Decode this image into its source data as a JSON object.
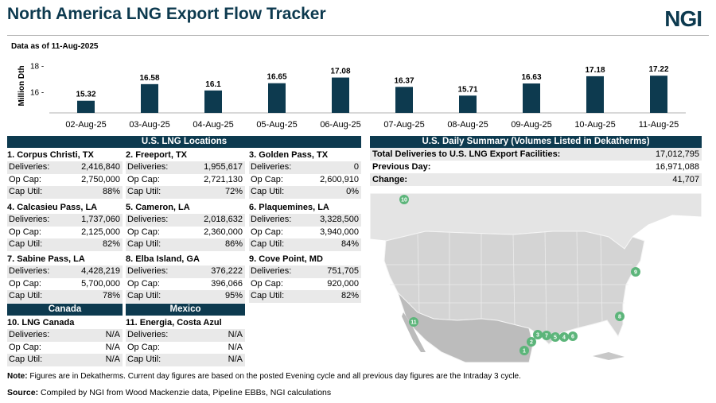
{
  "header": {
    "title": "North America LNG Export Flow Tracker",
    "logo": "NGI"
  },
  "as_of": "Data as of 11-Aug-2025",
  "chart_data": {
    "type": "bar",
    "ylabel": "Million Dth",
    "yticks": [
      "18 -",
      "16 -"
    ],
    "ylim": [
      14.4,
      18.5
    ],
    "bar_color": "#0d3a4f",
    "categories": [
      "02-Aug-25",
      "03-Aug-25",
      "04-Aug-25",
      "05-Aug-25",
      "06-Aug-25",
      "07-Aug-25",
      "08-Aug-25",
      "09-Aug-25",
      "10-Aug-25",
      "11-Aug-25"
    ],
    "values": [
      15.32,
      16.58,
      16.1,
      16.65,
      17.08,
      16.37,
      15.71,
      16.63,
      17.18,
      17.22
    ],
    "labels": [
      "15.32",
      "16.58",
      "16.1",
      "16.65",
      "17.08",
      "16.37",
      "15.71",
      "16.63",
      "17.18",
      "17.22"
    ]
  },
  "us_locations": {
    "banner": "U.S. LNG Locations",
    "items": [
      {
        "name": "1. Corpus Christi, TX",
        "deliveries": "2,416,840",
        "op_cap": "2,750,000",
        "cap_util": "88%"
      },
      {
        "name": "2. Freeport, TX",
        "deliveries": "1,955,617",
        "op_cap": "2,721,130",
        "cap_util": "72%"
      },
      {
        "name": "3. Golden Pass, TX",
        "deliveries": "0",
        "op_cap": "2,600,910",
        "cap_util": "0%"
      },
      {
        "name": "4. Calcasieu Pass, LA",
        "deliveries": "1,737,060",
        "op_cap": "2,125,000",
        "cap_util": "82%"
      },
      {
        "name": "5. Cameron, LA",
        "deliveries": "2,018,632",
        "op_cap": "2,360,000",
        "cap_util": "86%"
      },
      {
        "name": "6. Plaquemines, LA",
        "deliveries": "3,328,500",
        "op_cap": "3,940,000",
        "cap_util": "84%"
      },
      {
        "name": "7. Sabine Pass, LA",
        "deliveries": "4,428,219",
        "op_cap": "5,700,000",
        "cap_util": "78%"
      },
      {
        "name": "8. Elba Island, GA",
        "deliveries": "376,222",
        "op_cap": "396,066",
        "cap_util": "95%"
      },
      {
        "name": "9. Cove Point, MD",
        "deliveries": "751,705",
        "op_cap": "920,000",
        "cap_util": "82%"
      }
    ]
  },
  "labels": {
    "deliveries": "Deliveries:",
    "op_cap": "Op Cap:",
    "cap_util": "Cap Util:"
  },
  "canada": {
    "banner": "Canada",
    "name": "10. LNG Canada",
    "deliveries": "N/A",
    "op_cap": "N/A",
    "cap_util": "N/A"
  },
  "mexico": {
    "banner": "Mexico",
    "name": "11. Energia, Costa Azul",
    "deliveries": "N/A",
    "op_cap": "N/A",
    "cap_util": "N/A"
  },
  "summary": {
    "banner": "U.S. Daily Summary (Volumes Listed in Dekatherms)",
    "total_label": "Total Deliveries to U.S. LNG Export Facilities:",
    "total_value": "17,012,795",
    "prev_label": "Previous Day:",
    "prev_value": "16,971,088",
    "change_label": "Change:",
    "change_value": "41,707"
  },
  "map_markers": [
    "1",
    "2",
    "3",
    "4",
    "5",
    "6",
    "7",
    "8",
    "9",
    "10",
    "11"
  ],
  "colors": {
    "navy": "#0d3a4f",
    "marker": "#5cb57a",
    "land": "#d8d8d8",
    "shade": "#e9e9e9"
  },
  "note": {
    "label": "Note:",
    "text": " Figures are in Dekatherms.  Current day figures are based on the posted Evening cycle and all previous day figures are the Intraday 3 cycle."
  },
  "source": {
    "label": "Source:",
    "text": "  Compiled by NGI from Wood Mackenzie data, Pipeline EBBs, NGI calculations"
  }
}
